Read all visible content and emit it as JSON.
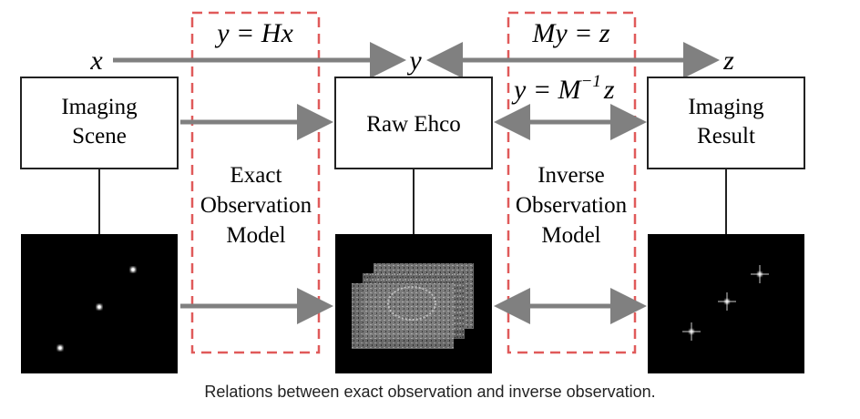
{
  "boxes": {
    "scene": "Imaging Scene",
    "echo": "Raw Ehco",
    "result": "Imaging Result"
  },
  "models": {
    "exact": "Exact Observation Model",
    "inverse": "Inverse Observation Model"
  },
  "variables": {
    "x": "x",
    "y": "y",
    "z": "z"
  },
  "equations": {
    "forward": "y = Hx",
    "measure": "My = z",
    "inverse_base": "y = M",
    "inverse_exp": "−1",
    "inverse_var": "z"
  },
  "caption": "Relations between exact observation and inverse observation.",
  "colors": {
    "arrow": "#808080",
    "dashed_box": "#e05a5a",
    "image_bg": "#000000"
  }
}
